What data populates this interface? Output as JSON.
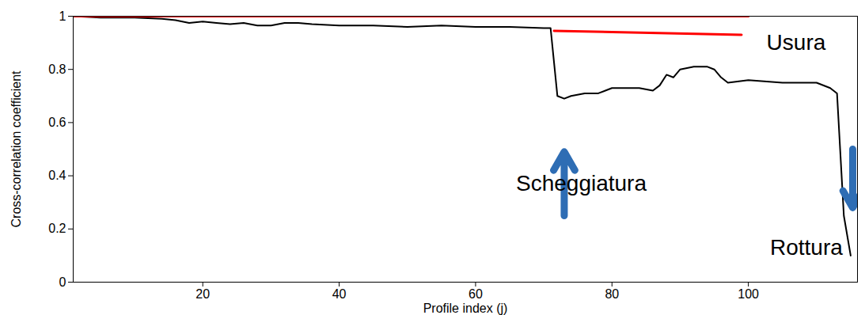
{
  "chart_data": {
    "type": "line",
    "x_label": "Profile index (j)",
    "y_label": "Cross-correlation coefficient",
    "xlim": [
      1,
      116
    ],
    "xticks": [
      20,
      40,
      60,
      80,
      100
    ],
    "ylim": [
      0,
      1
    ],
    "yticks": [
      0,
      0.2,
      0.4,
      0.6,
      0.8,
      1
    ],
    "grid": false,
    "series": [
      {
        "color": "#000000",
        "x": [
          1,
          5,
          10,
          14,
          16,
          18,
          20,
          22,
          24,
          26,
          28,
          30,
          32,
          34,
          36,
          40,
          45,
          50,
          55,
          60,
          65,
          70,
          71,
          72,
          73,
          74,
          76,
          78,
          80,
          82,
          84,
          86,
          87,
          88,
          89,
          90,
          92,
          94,
          95,
          96,
          97,
          100,
          105,
          110,
          112,
          113,
          114,
          115
        ],
        "values": [
          1.0,
          0.995,
          0.995,
          0.99,
          0.985,
          0.975,
          0.98,
          0.975,
          0.97,
          0.975,
          0.965,
          0.965,
          0.975,
          0.975,
          0.97,
          0.965,
          0.965,
          0.96,
          0.965,
          0.96,
          0.96,
          0.955,
          0.955,
          0.7,
          0.69,
          0.7,
          0.71,
          0.71,
          0.73,
          0.73,
          0.73,
          0.72,
          0.74,
          0.78,
          0.77,
          0.8,
          0.81,
          0.81,
          0.8,
          0.77,
          0.75,
          0.76,
          0.75,
          0.75,
          0.73,
          0.71,
          0.25,
          0.1
        ]
      },
      {
        "color": "#ff0000",
        "x": [
          1,
          100
        ],
        "values": [
          1.0,
          1.0
        ]
      },
      {
        "color": "#ff0000",
        "x": [
          71.5,
          99
        ],
        "values": [
          0.945,
          0.93
        ]
      }
    ],
    "annotations": [
      {
        "text": "Usura",
        "x": 107,
        "y": 0.9
      },
      {
        "text": "Scheggiatura",
        "x": 75.5,
        "y": 0.37
      },
      {
        "text": "Rottura",
        "x": 108.5,
        "y": 0.13
      }
    ],
    "arrows": [
      {
        "color": "#2e6db4",
        "x1": 73,
        "y1": 0.25,
        "x2": 73,
        "y2": 0.49
      },
      {
        "color": "#2e6db4",
        "x1": 115.3,
        "y1": 0.5,
        "x2": 115.3,
        "y2": 0.28
      }
    ]
  }
}
